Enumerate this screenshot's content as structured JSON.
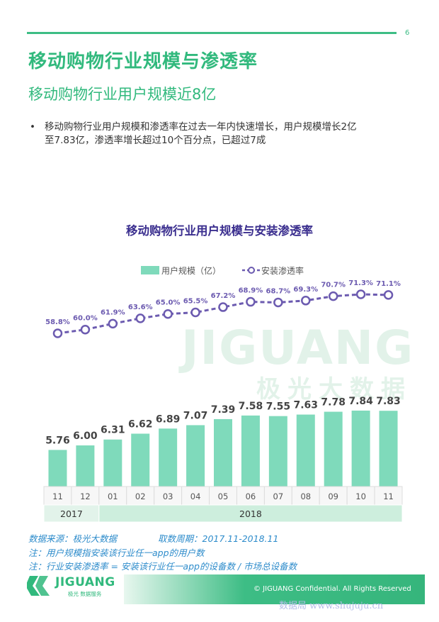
{
  "page_number": "6",
  "title": "移动购物行业规模与渗透率",
  "subtitle": "移动购物行业用户规模近8亿",
  "bullet": {
    "marker": "•",
    "lines": [
      "移动购物行业用户规模和渗透率在过去一年内快速增长，用户规模增长2亿",
      "至7.83亿，渗透率增长超过10个百分点，已超过7成"
    ]
  },
  "watermark": {
    "brand": "JIGUANG",
    "cn": "极光大数据"
  },
  "chart_data": {
    "type": "bar",
    "title": "移动购物行业用户规模与安装渗透率",
    "categories": [
      "11",
      "12",
      "01",
      "02",
      "03",
      "04",
      "05",
      "06",
      "07",
      "08",
      "09",
      "10",
      "11"
    ],
    "year_groups": [
      {
        "label": "2017",
        "count": 2
      },
      {
        "label": "2018",
        "count": 11
      }
    ],
    "series": [
      {
        "name": "用户规模（亿）",
        "type": "bar",
        "values": [
          5.76,
          6.0,
          6.31,
          6.62,
          6.89,
          7.07,
          7.39,
          7.58,
          7.55,
          7.63,
          7.78,
          7.84,
          7.83
        ],
        "labels": [
          "5.76",
          "6.00",
          "6.31",
          "6.62",
          "6.89",
          "7.07",
          "7.39",
          "7.58",
          "7.55",
          "7.63",
          "7.78",
          "7.84",
          "7.83"
        ]
      },
      {
        "name": "安装渗透率",
        "type": "line",
        "values": [
          58.8,
          60.0,
          61.9,
          63.6,
          65.0,
          65.5,
          67.2,
          68.9,
          68.7,
          69.3,
          70.7,
          71.3,
          71.1
        ],
        "labels": [
          "58.8%",
          "60.0%",
          "61.9%",
          "63.6%",
          "65.0%",
          "65.5%",
          "67.2%",
          "68.9%",
          "68.7%",
          "69.3%",
          "70.7%",
          "71.3%",
          "71.1%"
        ]
      }
    ],
    "bar_ylim": [
      0,
      10
    ],
    "line_ylim": [
      45,
      80
    ],
    "legend_position": "top-center",
    "colors": {
      "bar": "#7fdabb",
      "line": "#6c5bb0",
      "title": "#3b2f8f",
      "axis_box": "#dcdcdc",
      "year_box": "#cdeedd"
    }
  },
  "notes": {
    "source": "数据来源：极光大数据",
    "period": "取数周期：2017.11-2018.11",
    "note1": "注：用户规模指安装该行业任一app的用户数",
    "note2": "注：行业安装渗透率 = 安装该行业任一app的设备数 / 市场总设备数"
  },
  "footer": {
    "copyright": "© JIGUANG Confidential. All Rights Reserved",
    "logo_name": "JIGUANG",
    "logo_tagline": "极光 数据服务",
    "site_watermark": "数据局 www.shujuju.cn"
  }
}
